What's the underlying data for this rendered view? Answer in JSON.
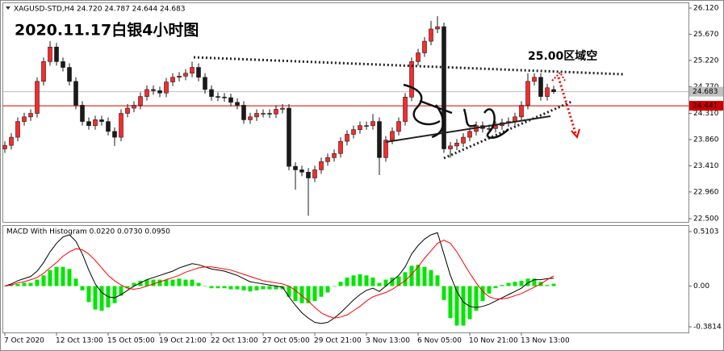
{
  "chart_data": [
    {
      "type": "candlestick",
      "header": "XAGUSD-STD,H4  24.720 24.787 24.644 24.683",
      "title": "2020.11.17白银4小时图",
      "annotation": "25.00区域空",
      "up_color": "#ff2a2a",
      "down_color": "#1a1a1a",
      "wick_color": "#1a1a1a",
      "categories": [
        "7 Oct 2020",
        null,
        null,
        null,
        null,
        null,
        null,
        null,
        "12 Oct 13:00",
        null,
        null,
        null,
        null,
        null,
        null,
        null,
        "15 Oct 05:00",
        null,
        null,
        null,
        null,
        null,
        null,
        null,
        "19 Oct 21:00",
        null,
        null,
        null,
        null,
        null,
        null,
        null,
        "22 Oct 13:00",
        null,
        null,
        null,
        null,
        null,
        null,
        null,
        "27 Oct 05:00",
        null,
        null,
        null,
        null,
        null,
        null,
        null,
        "29 Oct 21:00",
        null,
        null,
        null,
        null,
        null,
        null,
        null,
        "3 Nov 13:00",
        null,
        null,
        null,
        null,
        null,
        null,
        null,
        "6 Nov 05:00",
        null,
        null,
        null,
        null,
        null,
        null,
        null,
        "10 Nov 21:00",
        null,
        null,
        null,
        null,
        null,
        null,
        null,
        "13 Nov 13:00",
        null,
        null,
        null,
        null,
        null
      ],
      "open": [
        23.7,
        23.76,
        23.9,
        24.17,
        24.25,
        24.31,
        24.86,
        25.2,
        25.45,
        25.2,
        25.1,
        24.86,
        24.45,
        24.17,
        24.1,
        24.2,
        24.17,
        24.0,
        23.9,
        24.31,
        24.4,
        24.45,
        24.6,
        24.72,
        24.7,
        24.66,
        24.85,
        24.93,
        24.95,
        25.0,
        25.1,
        24.93,
        24.72,
        24.6,
        24.59,
        24.58,
        24.5,
        24.45,
        24.2,
        24.25,
        24.31,
        24.31,
        24.3,
        24.38,
        24.4,
        23.4,
        23.34,
        23.3,
        23.2,
        23.34,
        23.48,
        23.55,
        23.62,
        23.83,
        23.95,
        24.03,
        24.1,
        24.1,
        24.17,
        23.55,
        23.85,
        24.0,
        24.17,
        24.59,
        25.2,
        25.35,
        25.55,
        25.76,
        25.8,
        23.7,
        23.75,
        23.8,
        23.9,
        24.0,
        24.1,
        24.05,
        24.05,
        24.1,
        24.15,
        24.17,
        24.25,
        24.45,
        24.86,
        24.93,
        24.6,
        24.72
      ],
      "high": [
        23.83,
        23.97,
        24.24,
        24.32,
        24.38,
        24.93,
        25.27,
        25.55,
        25.52,
        25.27,
        25.17,
        24.93,
        24.52,
        24.24,
        24.27,
        24.27,
        24.24,
        24.07,
        24.38,
        24.47,
        24.52,
        24.67,
        24.79,
        24.79,
        24.77,
        24.92,
        25.0,
        25.02,
        25.07,
        25.2,
        25.17,
        25.0,
        24.79,
        24.67,
        24.66,
        24.65,
        24.57,
        24.52,
        24.32,
        24.38,
        24.38,
        24.38,
        24.45,
        24.47,
        24.47,
        23.47,
        23.41,
        23.37,
        23.41,
        23.55,
        23.62,
        23.69,
        23.9,
        24.02,
        24.1,
        24.17,
        24.17,
        24.3,
        24.24,
        23.92,
        24.07,
        24.24,
        24.66,
        25.27,
        25.42,
        25.62,
        25.9,
        25.98,
        25.87,
        23.82,
        23.87,
        23.97,
        24.07,
        24.17,
        24.17,
        24.12,
        24.17,
        24.22,
        24.24,
        24.32,
        24.52,
        25.0,
        25.0,
        25.0,
        24.82,
        24.787
      ],
      "low": [
        23.63,
        23.69,
        23.83,
        24.1,
        24.18,
        24.24,
        24.79,
        25.13,
        25.13,
        25.03,
        24.79,
        24.38,
        24.1,
        24.03,
        24.03,
        24.1,
        23.93,
        23.75,
        23.83,
        24.24,
        24.33,
        24.38,
        24.53,
        24.63,
        24.59,
        24.59,
        24.78,
        24.86,
        24.88,
        24.93,
        24.86,
        24.65,
        24.53,
        24.52,
        24.51,
        24.43,
        24.38,
        24.13,
        24.13,
        24.18,
        24.24,
        24.23,
        24.23,
        24.31,
        23.33,
        23.0,
        23.23,
        22.55,
        23.13,
        23.27,
        23.41,
        23.48,
        23.55,
        23.76,
        23.88,
        23.96,
        24.03,
        24.03,
        23.25,
        23.48,
        23.78,
        23.93,
        24.1,
        24.52,
        25.13,
        25.28,
        25.48,
        25.69,
        23.63,
        23.55,
        23.68,
        23.73,
        23.83,
        23.93,
        23.98,
        23.98,
        23.98,
        24.03,
        24.08,
        24.1,
        24.18,
        24.38,
        24.79,
        24.53,
        24.53,
        24.644
      ],
      "close": [
        23.76,
        23.9,
        24.17,
        24.25,
        24.31,
        24.86,
        25.2,
        25.45,
        25.2,
        25.1,
        24.86,
        24.45,
        24.17,
        24.1,
        24.2,
        24.17,
        24.0,
        23.9,
        24.31,
        24.4,
        24.45,
        24.6,
        24.72,
        24.7,
        24.66,
        24.85,
        24.93,
        24.95,
        25.0,
        25.1,
        24.93,
        24.72,
        24.6,
        24.59,
        24.58,
        24.5,
        24.45,
        24.2,
        24.25,
        24.31,
        24.31,
        24.3,
        24.38,
        24.4,
        23.4,
        23.34,
        23.3,
        23.2,
        23.34,
        23.48,
        23.55,
        23.62,
        23.83,
        23.95,
        24.03,
        24.1,
        24.1,
        24.17,
        23.55,
        23.85,
        24.0,
        24.17,
        24.59,
        25.2,
        25.35,
        25.55,
        25.76,
        25.8,
        23.7,
        23.75,
        23.8,
        23.9,
        24.0,
        24.1,
        24.05,
        24.05,
        24.1,
        24.15,
        24.17,
        24.25,
        24.45,
        24.86,
        24.93,
        24.6,
        24.75,
        24.683
      ],
      "ylim": [
        22.445,
        26.203
      ],
      "yticks": [
        {
          "value": 26.12,
          "label": "26.120"
        },
        {
          "value": 25.67,
          "label": "25.670"
        },
        {
          "value": 25.22,
          "label": "25.220"
        },
        {
          "value": 24.77,
          "label": "24.770"
        },
        {
          "value": 24.31,
          "label": "24.310"
        },
        {
          "value": 23.86,
          "label": "23.860"
        },
        {
          "value": 23.41,
          "label": "23.410"
        },
        {
          "value": 22.96,
          "label": "22.960"
        },
        {
          "value": 22.5,
          "label": "22.500"
        }
      ],
      "price_lines": [
        {
          "value": 24.683,
          "color": "#c0c0c0"
        },
        {
          "value": 24.441,
          "color": "#d00000"
        }
      ]
    },
    {
      "type": "macd",
      "title": "MACD With Histogram 0.0220 0.0730 0.0950",
      "histogram": {
        "color": "#00e600",
        "values": [
          0,
          0.01,
          0.02,
          0.03,
          0.03,
          0.06,
          0.1,
          0.15,
          0.18,
          0.18,
          0.16,
          0.07,
          -0.04,
          -0.15,
          -0.22,
          -0.23,
          -0.2,
          -0.16,
          -0.09,
          -0.02,
          0.03,
          0.05,
          0.06,
          0.06,
          0.06,
          0.06,
          0.06,
          0.07,
          0.06,
          0.06,
          0.03,
          0,
          -0.02,
          -0.02,
          -0.02,
          -0.03,
          -0.03,
          -0.04,
          -0.05,
          -0.04,
          -0.03,
          -0.03,
          -0.03,
          -0.03,
          -0.1,
          -0.14,
          -0.16,
          -0.16,
          -0.14,
          -0.1,
          -0.06,
          0,
          0.04,
          0.08,
          0.1,
          0.11,
          0.1,
          0.08,
          0.03,
          0.06,
          0.08,
          0.09,
          0.13,
          0.19,
          0.2,
          0.18,
          0.15,
          0.1,
          -0.13,
          -0.3,
          -0.37,
          -0.37,
          -0.31,
          -0.23,
          -0.14,
          -0.07,
          -0.02,
          0.01,
          0.03,
          0.04,
          0.05,
          0.07,
          0.07,
          0.04,
          0.01,
          0.022
        ]
      },
      "series": [
        {
          "color": "#000000",
          "values": [
            0,
            0.02,
            0.05,
            0.07,
            0.09,
            0.14,
            0.22,
            0.32,
            0.4,
            0.46,
            0.48,
            0.42,
            0.3,
            0.15,
            0.02,
            -0.06,
            -0.1,
            -0.11,
            -0.08,
            -0.04,
            0,
            0.03,
            0.06,
            0.08,
            0.1,
            0.12,
            0.14,
            0.17,
            0.19,
            0.21,
            0.2,
            0.18,
            0.16,
            0.15,
            0.14,
            0.12,
            0.1,
            0.07,
            0.04,
            0.03,
            0.02,
            0.01,
            0,
            -0.01,
            -0.1,
            -0.18,
            -0.25,
            -0.3,
            -0.34,
            -0.35,
            -0.34,
            -0.3,
            -0.25,
            -0.19,
            -0.13,
            -0.08,
            -0.04,
            -0.02,
            -0.05,
            0,
            0.05,
            0.1,
            0.18,
            0.3,
            0.38,
            0.44,
            0.48,
            0.5,
            0.3,
            0.1,
            -0.05,
            -0.15,
            -0.19,
            -0.2,
            -0.19,
            -0.17,
            -0.14,
            -0.11,
            -0.08,
            -0.05,
            -0.02,
            0.03,
            0.06,
            0.06,
            0.07,
            0.073
          ]
        },
        {
          "color": "#ff0000",
          "values": [
            0,
            0.01,
            0.03,
            0.04,
            0.06,
            0.08,
            0.12,
            0.17,
            0.22,
            0.28,
            0.32,
            0.35,
            0.34,
            0.3,
            0.24,
            0.17,
            0.1,
            0.05,
            0.01,
            -0.02,
            -0.03,
            -0.02,
            0,
            0.02,
            0.04,
            0.06,
            0.08,
            0.1,
            0.13,
            0.15,
            0.17,
            0.18,
            0.18,
            0.17,
            0.16,
            0.15,
            0.13,
            0.11,
            0.09,
            0.07,
            0.05,
            0.04,
            0.03,
            0.02,
            0,
            -0.04,
            -0.09,
            -0.14,
            -0.2,
            -0.25,
            -0.28,
            -0.3,
            -0.29,
            -0.27,
            -0.23,
            -0.19,
            -0.14,
            -0.1,
            -0.08,
            -0.06,
            -0.03,
            0.01,
            0.05,
            0.11,
            0.18,
            0.26,
            0.33,
            0.4,
            0.43,
            0.4,
            0.32,
            0.22,
            0.12,
            0.03,
            -0.05,
            -0.1,
            -0.12,
            -0.12,
            -0.11,
            -0.09,
            -0.07,
            -0.04,
            -0.01,
            0.02,
            0.06,
            0.095
          ]
        }
      ],
      "ylim": [
        -0.434,
        0.563
      ],
      "yticks": [
        0.5103,
        {
          "value": 0,
          "label": "0.00"
        },
        -0.3814
      ]
    }
  ]
}
